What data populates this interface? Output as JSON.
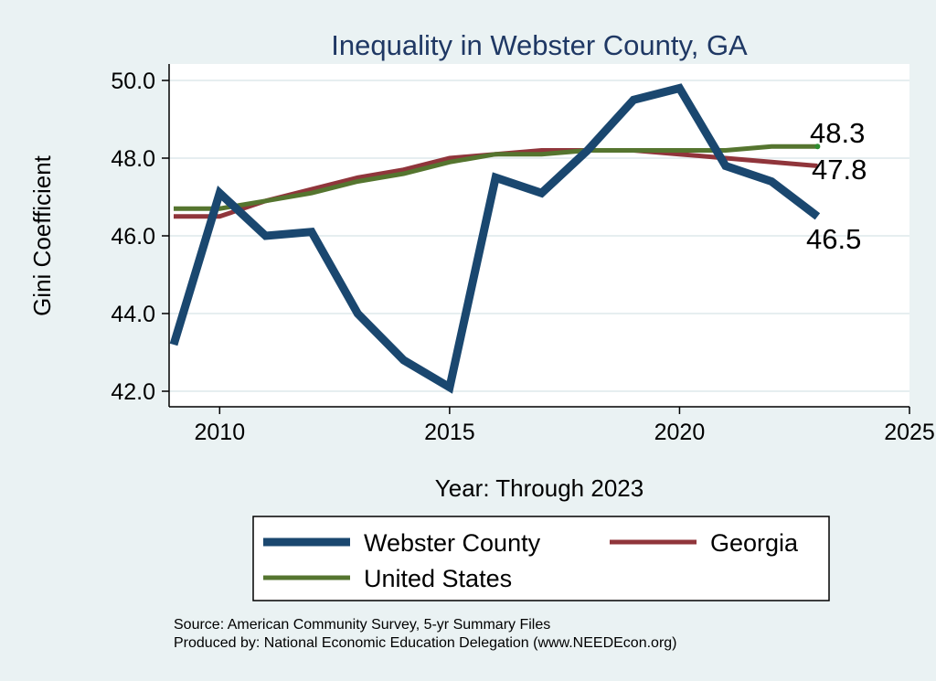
{
  "chart_data": {
    "type": "line",
    "title": "Inequality in Webster County, GA",
    "xlabel": "Year: Through 2023",
    "ylabel": "Gini Coefficient",
    "xlim": [
      2009,
      2025
    ],
    "ylim": [
      42.0,
      50.0
    ],
    "x_ticks": [
      2010,
      2015,
      2020,
      2025
    ],
    "y_ticks": [
      "42.0",
      "44.0",
      "46.0",
      "48.0",
      "50.0"
    ],
    "x": [
      2009,
      2010,
      2011,
      2012,
      2013,
      2014,
      2015,
      2016,
      2017,
      2018,
      2019,
      2020,
      2021,
      2022,
      2023
    ],
    "series": [
      {
        "name": "Webster County",
        "color": "#1a476f",
        "values": [
          43.2,
          47.1,
          46.0,
          46.1,
          44.0,
          42.8,
          42.1,
          47.5,
          47.1,
          48.2,
          49.5,
          49.8,
          47.8,
          47.4,
          46.5
        ],
        "end_label": "46.5"
      },
      {
        "name": "Georgia",
        "color": "#90353b",
        "values": [
          46.5,
          46.5,
          46.9,
          47.2,
          47.5,
          47.7,
          48.0,
          48.1,
          48.2,
          48.2,
          48.2,
          48.1,
          48.0,
          47.9,
          47.8
        ],
        "end_label": "47.8"
      },
      {
        "name": "United States",
        "color": "#55752f",
        "values": [
          46.7,
          46.7,
          46.9,
          47.1,
          47.4,
          47.6,
          47.9,
          48.1,
          48.1,
          48.2,
          48.2,
          48.2,
          48.2,
          48.3,
          48.3
        ],
        "end_label": "48.3"
      }
    ],
    "legend": {
      "position": "bottom",
      "items": [
        "Webster County",
        "Georgia",
        "United States"
      ]
    }
  },
  "footer": {
    "source": "Source: American Community Survey, 5-yr Summary Files",
    "producer": "Produced by: National Economic Education Delegation (www.NEEDEcon.org)"
  }
}
